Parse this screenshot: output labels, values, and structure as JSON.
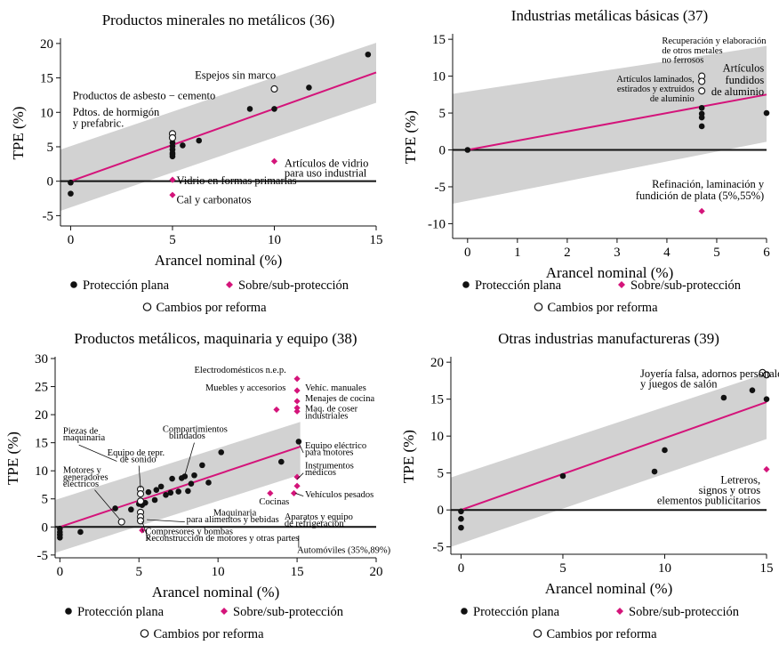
{
  "colors": {
    "black": "#111111",
    "magenta": "#d4147a",
    "band": "#d2d2d2",
    "reform": "#ffffff"
  },
  "legend": {
    "plana": "Protección plana",
    "sobre": "Sobre/sub-protección",
    "cambios": "Cambios por reforma"
  },
  "chart_data": [
    {
      "type": "scatter",
      "title": "Productos minerales no metálicos (36)",
      "xlabel": "Arancel nominal (%)",
      "ylabel": "TPE (%)",
      "xlim": [
        -0.5,
        15
      ],
      "ylim": [
        -6.5,
        20.5
      ],
      "xticks": [
        0,
        5,
        10,
        15
      ],
      "yticks": [
        -5,
        0,
        5,
        10,
        15,
        20
      ],
      "fit": [
        [
          0,
          0
        ],
        [
          15,
          15.8
        ]
      ],
      "band": [
        [
          -0.5,
          -4.3
        ],
        [
          15,
          11.4
        ],
        [
          15,
          20.1
        ],
        [
          -0.5,
          4.6
        ]
      ],
      "plana": [
        [
          0,
          -0.2
        ],
        [
          0,
          -1.8
        ],
        [
          5,
          5.6
        ],
        [
          5,
          4.6
        ],
        [
          5,
          4.1
        ],
        [
          5,
          3.6
        ],
        [
          5,
          3.9
        ],
        [
          5,
          5.1
        ],
        [
          5.5,
          5.2
        ],
        [
          6.3,
          5.9
        ],
        [
          8.8,
          10.5
        ],
        [
          10,
          10.5
        ],
        [
          11.7,
          13.6
        ],
        [
          14.6,
          18.4
        ]
      ],
      "sobre": [
        [
          5,
          0.2
        ],
        [
          5,
          -2
        ],
        [
          10,
          2.9
        ]
      ],
      "cambios": [
        [
          5,
          6.9
        ],
        [
          5,
          6.3
        ],
        [
          10,
          13.4
        ]
      ],
      "labels": [
        {
          "text": "Espejos sin marco",
          "x": 6.1,
          "y": 14.9,
          "size": "l",
          "anchor": "start"
        },
        {
          "text": "Productos de asbesto − cemento",
          "x": 0.1,
          "y": 11.9,
          "size": "l",
          "anchor": "start"
        },
        {
          "text": "Pdtos. de hormigón",
          "x": 0.1,
          "y": 9.5,
          "size": "l",
          "anchor": "start"
        },
        {
          "text": "y prefabric.",
          "x": 0.1,
          "y": 7.9,
          "size": "l",
          "anchor": "start"
        },
        {
          "text": "Artículos de vidrio",
          "x": 10.5,
          "y": 2.1,
          "size": "l",
          "anchor": "start"
        },
        {
          "text": "para uso industrial",
          "x": 10.5,
          "y": 0.7,
          "size": "l",
          "anchor": "start"
        },
        {
          "text": "Vidrio en formas primarias",
          "x": 5.2,
          "y": -0.4,
          "size": "l",
          "anchor": "start"
        },
        {
          "text": "Cal y carbonatos",
          "x": 5.2,
          "y": -3.2,
          "size": "l",
          "anchor": "start"
        }
      ]
    },
    {
      "type": "scatter",
      "title": "Industrias metálicas básicas (37)",
      "xlabel": "Arancel nominal (%)",
      "ylabel": "TPE (%)",
      "xlim": [
        -0.3,
        6
      ],
      "ylim": [
        -12,
        15.5
      ],
      "xticks": [
        0,
        1,
        2,
        3,
        4,
        5,
        6
      ],
      "yticks": [
        -10,
        -5,
        0,
        5,
        10,
        15
      ],
      "fit": [
        [
          0,
          0
        ],
        [
          6,
          7.5
        ]
      ],
      "band": [
        [
          -0.3,
          -7.3
        ],
        [
          6,
          1.1
        ],
        [
          6,
          14.1
        ],
        [
          -0.3,
          7.6
        ]
      ],
      "plana": [
        [
          0,
          0
        ],
        [
          4.7,
          5.7
        ],
        [
          4.7,
          4.9
        ],
        [
          4.7,
          4.4
        ],
        [
          4.7,
          3.2
        ],
        [
          6,
          5
        ]
      ],
      "sobre": [
        [
          4.7,
          -8.3
        ]
      ],
      "cambios": [
        [
          4.7,
          10
        ],
        [
          4.7,
          9.3
        ],
        [
          4.7,
          8
        ]
      ],
      "labels": [
        {
          "text": "Recuperación y elaboración",
          "x": 3.9,
          "y": 14.4,
          "size": "s",
          "anchor": "start"
        },
        {
          "text": "de otros metales",
          "x": 3.9,
          "y": 13.1,
          "size": "s",
          "anchor": "start"
        },
        {
          "text": "no ferrosos",
          "x": 3.9,
          "y": 11.8,
          "size": "s",
          "anchor": "start"
        },
        {
          "text": "Artículos laminados,",
          "x": 4.55,
          "y": 9.2,
          "size": "s",
          "anchor": "end"
        },
        {
          "text": "estirados y extruidos",
          "x": 4.55,
          "y": 7.9,
          "size": "s",
          "anchor": "end"
        },
        {
          "text": "de aluminio",
          "x": 4.55,
          "y": 6.6,
          "size": "s",
          "anchor": "end"
        },
        {
          "text": "Artículos",
          "x": 5.95,
          "y": 10.6,
          "size": "l",
          "anchor": "end"
        },
        {
          "text": "fundidos",
          "x": 5.95,
          "y": 9,
          "size": "l",
          "anchor": "end"
        },
        {
          "text": "de aluminio",
          "x": 5.95,
          "y": 7.4,
          "size": "l",
          "anchor": "end"
        },
        {
          "text": "Refinación, laminación y",
          "x": 5.95,
          "y": -5.1,
          "size": "l",
          "anchor": "end"
        },
        {
          "text": "fundición de plata (5%,55%)",
          "x": 5.95,
          "y": -6.7,
          "size": "l",
          "anchor": "end"
        }
      ]
    },
    {
      "type": "scatter",
      "title": "Productos metálicos, maquinaria y equipo (38)",
      "xlabel": "Arancel nominal (%)",
      "ylabel": "TPE (%)",
      "xlim": [
        -0.3,
        20
      ],
      "ylim": [
        -5.5,
        30
      ],
      "xticks": [
        0,
        5,
        10,
        15,
        20
      ],
      "yticks": [
        -5,
        0,
        5,
        10,
        15,
        20,
        25,
        30
      ],
      "fit": [
        [
          0,
          0
        ],
        [
          15.2,
          14.3
        ]
      ],
      "band": [
        [
          -0.3,
          -4.6
        ],
        [
          15.2,
          9.3
        ],
        [
          15.2,
          18.7
        ],
        [
          -0.3,
          4.8
        ]
      ],
      "plana": [
        [
          0,
          -0.3
        ],
        [
          0,
          -0.9
        ],
        [
          0,
          -1.4
        ],
        [
          0,
          -1.9
        ],
        [
          1.3,
          -0.9
        ],
        [
          3.5,
          3.3
        ],
        [
          4.5,
          3.1
        ],
        [
          5,
          4.1
        ],
        [
          5.2,
          3.9
        ],
        [
          5.4,
          4.3
        ],
        [
          5.6,
          6.2
        ],
        [
          6,
          4.8
        ],
        [
          6.1,
          6.6
        ],
        [
          6.4,
          7.2
        ],
        [
          6.7,
          5.7
        ],
        [
          7,
          6.1
        ],
        [
          7.1,
          8.6
        ],
        [
          7.5,
          6.3
        ],
        [
          7.7,
          8.7
        ],
        [
          7.9,
          9
        ],
        [
          8.1,
          6.4
        ],
        [
          8.3,
          7.7
        ],
        [
          8.5,
          9.2
        ],
        [
          9,
          11
        ],
        [
          9.4,
          7.9
        ],
        [
          10.2,
          13.3
        ],
        [
          14,
          11.6
        ],
        [
          15.1,
          15.2
        ]
      ],
      "sobre": [
        [
          15,
          26.4
        ],
        [
          15,
          24.3
        ],
        [
          15,
          22.4
        ],
        [
          15,
          21.2
        ],
        [
          15,
          20.6
        ],
        [
          13.7,
          20.9
        ],
        [
          13.3,
          6
        ],
        [
          14.8,
          6
        ],
        [
          15,
          8.9
        ],
        [
          15,
          7.3
        ],
        [
          5.2,
          -0.6
        ]
      ],
      "cambios": [
        [
          3.9,
          0.9
        ],
        [
          5.1,
          6.7
        ],
        [
          5.1,
          5.9
        ],
        [
          5.1,
          4.6
        ],
        [
          5.1,
          2.6
        ],
        [
          5.1,
          1.8
        ],
        [
          5.1,
          1.1
        ]
      ],
      "labels": [
        {
          "text": "Electrodomésticos n.e.p.",
          "x": 8.5,
          "y": 27.5,
          "size": "s",
          "anchor": "start"
        },
        {
          "text": "Muebles y accesorios",
          "x": 9.2,
          "y": 24.3,
          "size": "s",
          "anchor": "start"
        },
        {
          "text": "Vehíc. manuales",
          "x": 15.5,
          "y": 24.3,
          "size": "s",
          "anchor": "start"
        },
        {
          "text": "Menajes de cocina",
          "x": 15.5,
          "y": 22.4,
          "size": "s",
          "anchor": "start"
        },
        {
          "text": "Maq. de coser",
          "x": 15.5,
          "y": 20.6,
          "size": "s",
          "anchor": "start"
        },
        {
          "text": "industriales",
          "x": 15.5,
          "y": 19.3,
          "size": "s",
          "anchor": "start"
        },
        {
          "text": "Compartimientos",
          "x": 6.5,
          "y": 16.9,
          "size": "s",
          "anchor": "start"
        },
        {
          "text": "blindados",
          "x": 6.9,
          "y": 15.7,
          "size": "s",
          "anchor": "start"
        },
        {
          "text": "Equipo eléctrico",
          "x": 15.5,
          "y": 14,
          "size": "s",
          "anchor": "start"
        },
        {
          "text": "para motores",
          "x": 15.5,
          "y": 12.8,
          "size": "s",
          "anchor": "start"
        },
        {
          "text": "Piezas de",
          "x": 0.2,
          "y": 16.6,
          "size": "s",
          "anchor": "start"
        },
        {
          "text": "maquinaria",
          "x": 0.2,
          "y": 15.4,
          "size": "s",
          "anchor": "start"
        },
        {
          "text": "Equipo de repr.",
          "x": 3.0,
          "y": 12.7,
          "size": "s",
          "anchor": "start"
        },
        {
          "text": "de sonido",
          "x": 3.8,
          "y": 11.5,
          "size": "s",
          "anchor": "start"
        },
        {
          "text": "Instrumentos",
          "x": 15.5,
          "y": 10.4,
          "size": "s",
          "anchor": "start"
        },
        {
          "text": "médicos",
          "x": 15.5,
          "y": 9.2,
          "size": "s",
          "anchor": "start"
        },
        {
          "text": "Motores y",
          "x": 0.2,
          "y": 9.6,
          "size": "s",
          "anchor": "start"
        },
        {
          "text": "generadores",
          "x": 0.2,
          "y": 8.4,
          "size": "s",
          "anchor": "start"
        },
        {
          "text": "eléctricos",
          "x": 0.2,
          "y": 7.2,
          "size": "s",
          "anchor": "start"
        },
        {
          "text": "Cocinas",
          "x": 12.6,
          "y": 4.0,
          "size": "s",
          "anchor": "start"
        },
        {
          "text": "Vehículos pesados",
          "x": 15.5,
          "y": 5.3,
          "size": "s",
          "anchor": "start"
        },
        {
          "text": "Maquinaria",
          "x": 9.7,
          "y": 2.0,
          "size": "s",
          "anchor": "start"
        },
        {
          "text": "para alimentos y bebidas",
          "x": 8.0,
          "y": 0.8,
          "size": "s",
          "anchor": "start"
        },
        {
          "text": "Aparatos y equipo",
          "x": 14.2,
          "y": 1.3,
          "size": "s",
          "anchor": "start"
        },
        {
          "text": "de refrigeración",
          "x": 14.2,
          "y": 0.1,
          "size": "s",
          "anchor": "start"
        },
        {
          "text": "Compresores y bombas",
          "x": 5.4,
          "y": -1.3,
          "size": "s",
          "anchor": "start"
        },
        {
          "text": "Reconstrucción de motores y otras partes",
          "x": 5.4,
          "y": -2.5,
          "size": "s",
          "anchor": "start"
        },
        {
          "text": "Automóviles (35%,89%)",
          "x": 15.0,
          "y": -4.6,
          "size": "s",
          "anchor": "start"
        }
      ]
    },
    {
      "type": "scatter",
      "title": "Otras industrias manufactureras (39)",
      "xlabel": "Arancel nominal (%)",
      "ylabel": "TPE (%)",
      "xlim": [
        -0.5,
        15
      ],
      "ylim": [
        -6,
        20.5
      ],
      "xticks": [
        0,
        5,
        10,
        15
      ],
      "yticks": [
        -5,
        0,
        5,
        10,
        15,
        20
      ],
      "fit": [
        [
          0,
          0
        ],
        [
          15,
          14.6
        ]
      ],
      "band": [
        [
          -0.5,
          -5
        ],
        [
          15,
          9.6
        ],
        [
          15,
          18.5
        ],
        [
          -0.5,
          4.4
        ]
      ],
      "plana": [
        [
          0,
          -0.2
        ],
        [
          0,
          -1.2
        ],
        [
          0,
          -2.4
        ],
        [
          5,
          4.6
        ],
        [
          9.5,
          5.2
        ],
        [
          10,
          8.1
        ],
        [
          12.9,
          15.2
        ],
        [
          14.3,
          16.2
        ],
        [
          15,
          15
        ]
      ],
      "sobre": [
        [
          15,
          5.5
        ]
      ],
      "cambios": [
        [
          14.8,
          18.6
        ],
        [
          15,
          18.3
        ]
      ],
      "labels": [
        {
          "text": "Joyería falsa, adornos personales",
          "x": 8.8,
          "y": 18,
          "size": "l",
          "anchor": "start"
        },
        {
          "text": "y juegos de salón",
          "x": 8.8,
          "y": 16.6,
          "size": "l",
          "anchor": "start"
        },
        {
          "text": "Letreros,",
          "x": 14.7,
          "y": 3.6,
          "size": "l",
          "anchor": "end"
        },
        {
          "text": "signos y otros",
          "x": 14.7,
          "y": 2.2,
          "size": "l",
          "anchor": "end"
        },
        {
          "text": "elementos publicitarios",
          "x": 14.7,
          "y": 0.8,
          "size": "l",
          "anchor": "end"
        }
      ]
    }
  ]
}
